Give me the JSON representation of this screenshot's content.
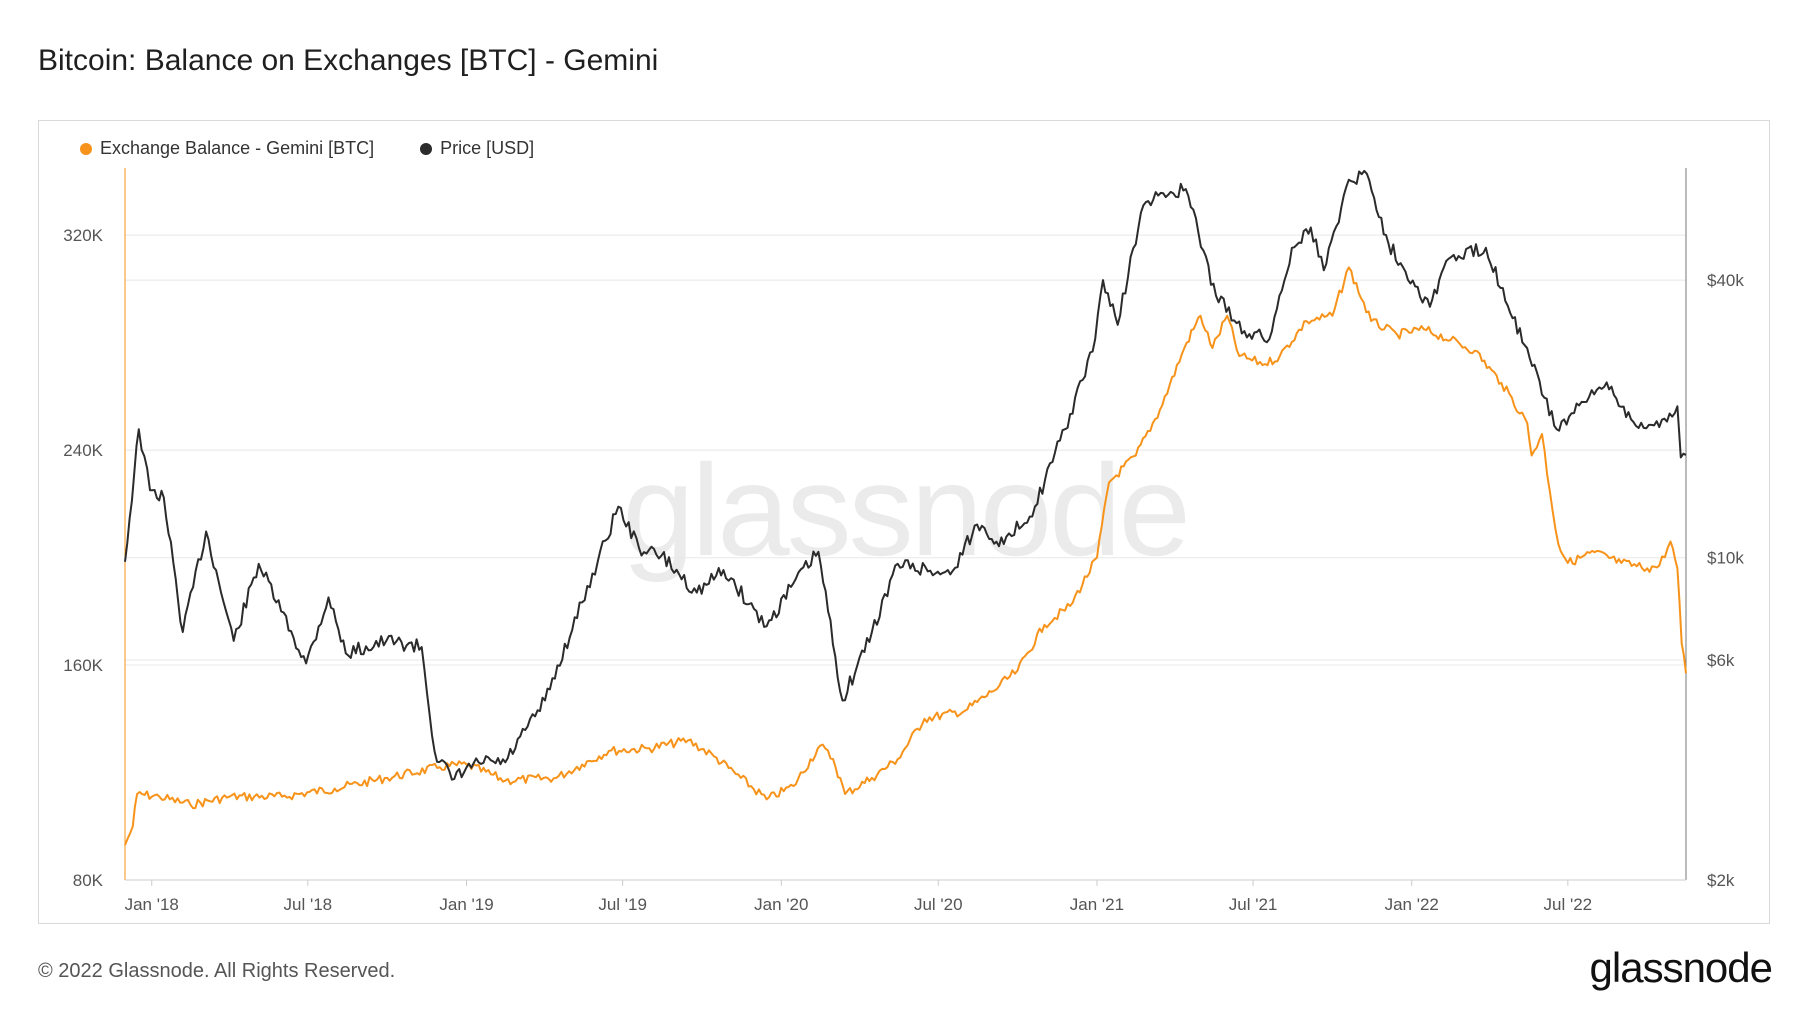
{
  "title": "Bitcoin: Balance on Exchanges [BTC] - Gemini",
  "footer": "© 2022 Glassnode. All Rights Reserved.",
  "brand": "glassnode",
  "watermark": "glassnode",
  "colors": {
    "balance": "#f7931a",
    "price": "#2b2b2b",
    "grid": "#e8e8e8"
  },
  "chart_data": {
    "type": "line",
    "title": "Bitcoin: Balance on Exchanges [BTC] - Gemini",
    "grid": true,
    "legend_position": "top-left",
    "x_ticks": [
      "Jan '18",
      "Jul '18",
      "Jan '19",
      "Jul '19",
      "Jan '20",
      "Jul '20",
      "Jan '21",
      "Jul '21",
      "Jan '22",
      "Jul '22"
    ],
    "y_left": {
      "ticks": [
        "80K",
        "160K",
        "240K",
        "320K"
      ],
      "range": [
        80000,
        345000
      ]
    },
    "y_right": {
      "scale": "log",
      "ticks": [
        "$2k",
        "$6k",
        "$10k",
        "$40k"
      ],
      "range": [
        2000,
        70000
      ]
    },
    "series": [
      {
        "name": "Exchange Balance - Gemini [BTC]",
        "axis": "left",
        "points": [
          [
            "2017-12-01",
            93000
          ],
          [
            "2017-12-10",
            100000
          ],
          [
            "2017-12-15",
            112000
          ],
          [
            "2018-01-10",
            111000
          ],
          [
            "2018-02-15",
            108000
          ],
          [
            "2018-04-01",
            111000
          ],
          [
            "2018-06-01",
            111000
          ],
          [
            "2018-08-01",
            114000
          ],
          [
            "2018-10-01",
            118000
          ],
          [
            "2018-12-01",
            122000
          ],
          [
            "2019-01-01",
            123000
          ],
          [
            "2019-02-15",
            117000
          ],
          [
            "2019-04-15",
            118000
          ],
          [
            "2019-05-15",
            123000
          ],
          [
            "2019-06-15",
            128000
          ],
          [
            "2019-08-01",
            129000
          ],
          [
            "2019-09-15",
            132000
          ],
          [
            "2019-10-15",
            126000
          ],
          [
            "2019-11-15",
            118000
          ],
          [
            "2019-12-15",
            110000
          ],
          [
            "2020-01-15",
            115000
          ],
          [
            "2020-02-15",
            130000
          ],
          [
            "2020-03-01",
            125000
          ],
          [
            "2020-03-15",
            112000
          ],
          [
            "2020-04-15",
            118000
          ],
          [
            "2020-05-15",
            125000
          ],
          [
            "2020-06-15",
            140000
          ],
          [
            "2020-08-01",
            143000
          ],
          [
            "2020-09-01",
            150000
          ],
          [
            "2020-10-01",
            158000
          ],
          [
            "2020-11-01",
            175000
          ],
          [
            "2020-12-01",
            182000
          ],
          [
            "2021-01-01",
            200000
          ],
          [
            "2021-01-15",
            228000
          ],
          [
            "2021-02-15",
            238000
          ],
          [
            "2021-03-15",
            255000
          ],
          [
            "2021-04-15",
            280000
          ],
          [
            "2021-05-01",
            290000
          ],
          [
            "2021-05-15",
            278000
          ],
          [
            "2021-06-01",
            290000
          ],
          [
            "2021-06-15",
            275000
          ],
          [
            "2021-07-15",
            272000
          ],
          [
            "2021-08-01",
            275000
          ],
          [
            "2021-09-01",
            288000
          ],
          [
            "2021-10-01",
            290000
          ],
          [
            "2021-10-20",
            308000
          ],
          [
            "2021-11-15",
            288000
          ],
          [
            "2021-12-15",
            283000
          ],
          [
            "2022-01-15",
            285000
          ],
          [
            "2022-02-15",
            281000
          ],
          [
            "2022-03-15",
            277000
          ],
          [
            "2022-04-15",
            265000
          ],
          [
            "2022-05-15",
            250000
          ],
          [
            "2022-05-20",
            238000
          ],
          [
            "2022-06-01",
            246000
          ],
          [
            "2022-06-10",
            225000
          ],
          [
            "2022-06-20",
            205000
          ],
          [
            "2022-07-01",
            198000
          ],
          [
            "2022-08-01",
            202000
          ],
          [
            "2022-09-01",
            198000
          ],
          [
            "2022-10-01",
            196000
          ],
          [
            "2022-10-15",
            197000
          ],
          [
            "2022-10-28",
            206000
          ],
          [
            "2022-11-05",
            196000
          ],
          [
            "2022-11-10",
            168000
          ],
          [
            "2022-11-15",
            157000
          ]
        ]
      },
      {
        "name": "Price [USD]",
        "axis": "right",
        "points": [
          [
            "2017-12-01",
            9800
          ],
          [
            "2017-12-17",
            19000
          ],
          [
            "2017-12-30",
            14000
          ],
          [
            "2018-01-15",
            13500
          ],
          [
            "2018-02-06",
            6900
          ],
          [
            "2018-03-05",
            11400
          ],
          [
            "2018-04-06",
            6600
          ],
          [
            "2018-05-05",
            9700
          ],
          [
            "2018-06-29",
            5900
          ],
          [
            "2018-07-25",
            8200
          ],
          [
            "2018-08-14",
            6200
          ],
          [
            "2018-09-30",
            6600
          ],
          [
            "2018-11-10",
            6400
          ],
          [
            "2018-11-25",
            3800
          ],
          [
            "2018-12-15",
            3300
          ],
          [
            "2019-01-15",
            3600
          ],
          [
            "2019-02-15",
            3600
          ],
          [
            "2019-04-02",
            4900
          ],
          [
            "2019-05-15",
            8000
          ],
          [
            "2019-06-26",
            12900
          ],
          [
            "2019-07-20",
            10500
          ],
          [
            "2019-08-15",
            10100
          ],
          [
            "2019-09-25",
            8400
          ],
          [
            "2019-10-26",
            9400
          ],
          [
            "2019-12-15",
            7100
          ],
          [
            "2020-01-15",
            8800
          ],
          [
            "2020-02-13",
            10300
          ],
          [
            "2020-03-12",
            4900
          ],
          [
            "2020-04-15",
            6900
          ],
          [
            "2020-05-15",
            9700
          ],
          [
            "2020-07-15",
            9200
          ],
          [
            "2020-08-15",
            11800
          ],
          [
            "2020-09-15",
            10700
          ],
          [
            "2020-10-21",
            12900
          ],
          [
            "2020-11-25",
            19000
          ],
          [
            "2020-12-27",
            28000
          ],
          [
            "2021-01-08",
            40000
          ],
          [
            "2021-01-25",
            32000
          ],
          [
            "2021-02-21",
            56000
          ],
          [
            "2021-03-13",
            61000
          ],
          [
            "2021-04-14",
            63000
          ],
          [
            "2021-05-19",
            37000
          ],
          [
            "2021-06-21",
            31000
          ],
          [
            "2021-07-20",
            29800
          ],
          [
            "2021-08-15",
            47000
          ],
          [
            "2021-09-06",
            52000
          ],
          [
            "2021-09-21",
            42000
          ],
          [
            "2021-10-20",
            66000
          ],
          [
            "2021-11-10",
            68000
          ],
          [
            "2021-12-05",
            48000
          ],
          [
            "2022-01-22",
            35000
          ],
          [
            "2022-02-10",
            44000
          ],
          [
            "2022-03-28",
            47000
          ],
          [
            "2022-05-12",
            28900
          ],
          [
            "2022-06-18",
            19000
          ],
          [
            "2022-08-15",
            24000
          ],
          [
            "2022-09-15",
            19700
          ],
          [
            "2022-10-15",
            19200
          ],
          [
            "2022-11-05",
            21300
          ],
          [
            "2022-11-09",
            16500
          ],
          [
            "2022-11-15",
            16700
          ]
        ]
      }
    ]
  }
}
